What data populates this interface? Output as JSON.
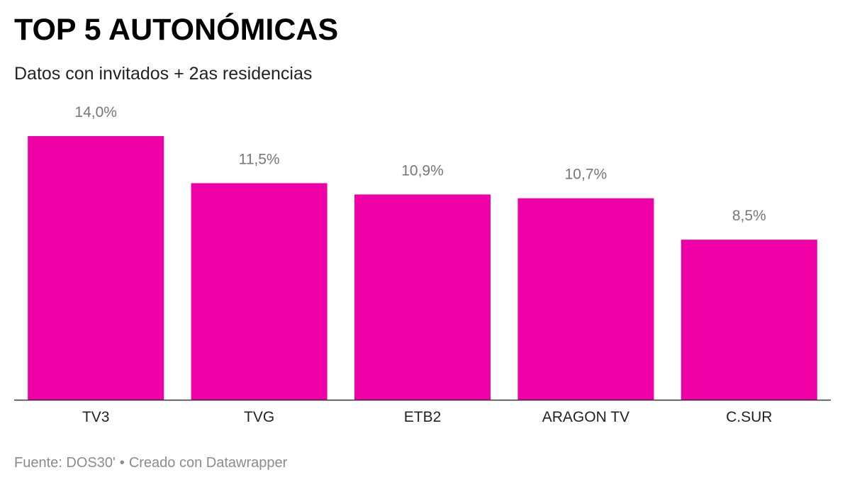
{
  "header": {
    "title": "TOP 5 AUTONÓMICAS",
    "subtitle": "Datos con invitados + 2as residencias"
  },
  "colors": {
    "bar": "#EE00A6",
    "value_label": "#777777",
    "axis": "#333333",
    "category_label": "#222222"
  },
  "chart_data": {
    "type": "bar",
    "title": "TOP 5 AUTONÓMICAS",
    "subtitle": "Datos con invitados + 2as residencias",
    "categories": [
      "TV3",
      "TVG",
      "ETB2",
      "ARAGON TV",
      "C.SUR"
    ],
    "values": [
      14.0,
      11.5,
      10.9,
      10.7,
      8.5
    ],
    "value_labels": [
      "14,0%",
      "11,5%",
      "10,9%",
      "10,7%",
      "8,5%"
    ],
    "xlabel": "",
    "ylabel": "",
    "ylim": [
      0,
      14.0
    ],
    "grid": false,
    "legend": "none"
  },
  "footer": {
    "source": "Fuente: DOS30'",
    "separator": "•",
    "credit": "Creado con Datawrapper"
  }
}
